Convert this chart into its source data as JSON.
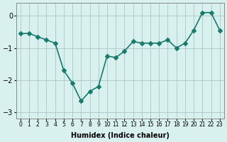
{
  "x": [
    0,
    1,
    2,
    3,
    4,
    5,
    6,
    7,
    8,
    9,
    10,
    11,
    12,
    13,
    14,
    15,
    16,
    17,
    18,
    19,
    20,
    21,
    22,
    23
  ],
  "y": [
    -0.55,
    -0.55,
    -0.65,
    -0.75,
    -0.85,
    -1.7,
    -2.1,
    -2.65,
    -2.35,
    -2.2,
    -1.25,
    -1.3,
    -1.1,
    -0.8,
    -0.85,
    -0.85,
    -0.85,
    -0.75,
    -1.0,
    -0.85,
    -0.45,
    0.1,
    0.1,
    -0.45
  ],
  "line_color": "#1a7a6e",
  "marker": "D",
  "marker_size": 3,
  "bg_color": "#d8f0ee",
  "grid_color": "#b0ccc8",
  "xlabel": "Humidex (Indice chaleur)",
  "ylabel": "",
  "title": "",
  "ylim": [
    -3.2,
    0.4
  ],
  "xlim": [
    -0.5,
    23.5
  ],
  "yticks": [
    0,
    -1,
    -2,
    -3
  ],
  "xtick_labels": [
    "0",
    "1",
    "2",
    "3",
    "4",
    "5",
    "6",
    "7",
    "8",
    "9",
    "10",
    "11",
    "12",
    "13",
    "14",
    "15",
    "16",
    "17",
    "18",
    "19",
    "20",
    "21",
    "22",
    "23"
  ]
}
